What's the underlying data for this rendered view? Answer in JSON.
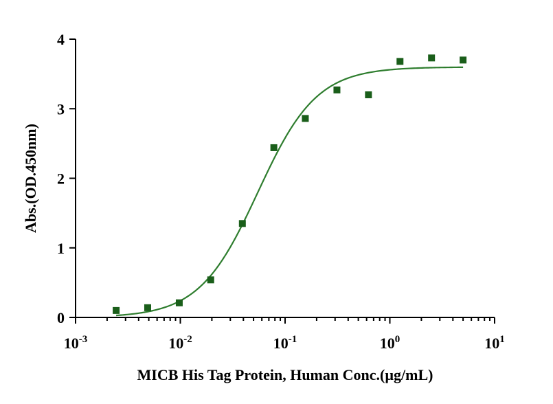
{
  "chart_data": {
    "type": "scatter",
    "title": "",
    "xlabel": "MICB His Tag Protein, Human Conc.(µg/mL)",
    "ylabel": "Abs.(OD.450nm)",
    "xscale": "log",
    "xlim": [
      0.001,
      10
    ],
    "ylim": [
      0,
      4
    ],
    "grid": false,
    "legend": "none",
    "x_ticks": [
      {
        "value": 0.001,
        "base": "10",
        "exp": "-3"
      },
      {
        "value": 0.01,
        "base": "10",
        "exp": "-2"
      },
      {
        "value": 0.1,
        "base": "10",
        "exp": "-1"
      },
      {
        "value": 1,
        "base": "10",
        "exp": "0"
      },
      {
        "value": 10,
        "base": "10",
        "exp": "1"
      }
    ],
    "y_ticks": [
      {
        "value": 0,
        "label": "0"
      },
      {
        "value": 1,
        "label": "1"
      },
      {
        "value": 2,
        "label": "2"
      },
      {
        "value": 3,
        "label": "3"
      },
      {
        "value": 4,
        "label": "4"
      }
    ],
    "series": [
      {
        "x": [
          0.00244,
          0.00488,
          0.00977,
          0.0195,
          0.0391,
          0.0781,
          0.156,
          0.3125,
          0.625,
          1.25,
          2.5,
          5.0
        ],
        "y": [
          0.1,
          0.14,
          0.21,
          0.54,
          1.35,
          2.44,
          2.86,
          3.27,
          3.2,
          3.68,
          3.73,
          3.7
        ],
        "fit": {
          "model": "4PL",
          "bottom": 0.0,
          "top": 3.6,
          "ec50": 0.055,
          "hill": 1.55,
          "x_range": [
            0.00244,
            5.0
          ]
        }
      }
    ],
    "colors": {
      "points": "#1a5e1a",
      "curve": "#2e7d2e",
      "axis": "#000000"
    }
  }
}
